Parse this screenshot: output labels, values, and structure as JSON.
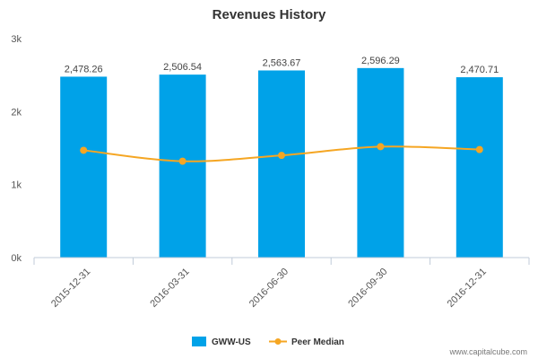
{
  "chart_data": {
    "type": "bar",
    "title": "Revenues History",
    "categories": [
      "2015-12-31",
      "2016-03-31",
      "2016-06-30",
      "2016-09-30",
      "2016-12-31"
    ],
    "series": [
      {
        "name": "GWW-US",
        "type": "bar",
        "color": "#00a2e8",
        "values": [
          2478.26,
          2506.54,
          2563.67,
          2596.29,
          2470.71
        ],
        "labels": [
          "2,478.26",
          "2,506.54",
          "2,563.67",
          "2,596.29",
          "2,470.71"
        ]
      },
      {
        "name": "Peer Median",
        "type": "line",
        "color": "#f5a623",
        "values": [
          1470,
          1320,
          1400,
          1520,
          1480
        ]
      }
    ],
    "ylim": [
      0,
      3000
    ],
    "yticks": [
      0,
      1000,
      2000,
      3000
    ],
    "ytick_labels": [
      "0k",
      "1k",
      "2k",
      "3k"
    ],
    "xlabel": "",
    "ylabel": "",
    "grid": false,
    "legend": "bottom-center"
  },
  "credit": "www.capitalcube.com"
}
